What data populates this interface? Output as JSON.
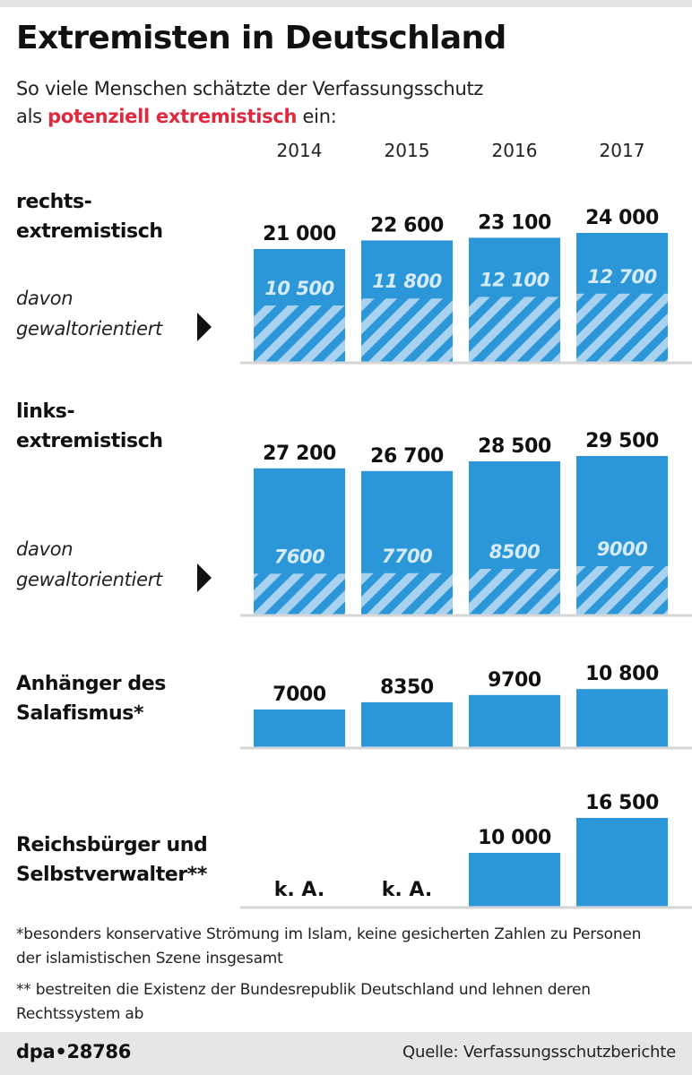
{
  "header": {
    "title": "Extremisten in Deutschland",
    "subtitle_line1": "So viele Menschen schätzte der Verfassungsschutz",
    "subtitle_pre": "als",
    "subtitle_highlight": "potenziell extremistisch",
    "subtitle_post": "ein:"
  },
  "colors": {
    "bar": "#2b97d8",
    "hatch_light": "#a8d2ef",
    "highlight": "#e0283e",
    "divider": "#d6d6d6"
  },
  "chart_data": {
    "type": "bar",
    "categories": [
      "2014",
      "2015",
      "2016",
      "2017"
    ],
    "groups": [
      {
        "label_lines": [
          "rechts-",
          "extremistisch"
        ],
        "values": [
          21000,
          22600,
          23100,
          24000
        ],
        "value_labels": [
          "21 000",
          "22 600",
          "23 100",
          "24 000"
        ],
        "sub_label_lines": [
          "davon",
          "gewaltorientiert"
        ],
        "sub_values": [
          10500,
          11800,
          12100,
          12700
        ],
        "sub_value_labels": [
          "10 500",
          "11 800",
          "12 100",
          "12 700"
        ]
      },
      {
        "label_lines": [
          "links-",
          "extremistisch"
        ],
        "values": [
          27200,
          26700,
          28500,
          29500
        ],
        "value_labels": [
          "27 200",
          "26 700",
          "28 500",
          "29 500"
        ],
        "sub_label_lines": [
          "davon",
          "gewaltorientiert"
        ],
        "sub_values": [
          7600,
          7700,
          8500,
          9000
        ],
        "sub_value_labels": [
          "7600",
          "7700",
          "8500",
          "9000"
        ]
      },
      {
        "label_lines": [
          "Anhänger des",
          "Salafismus*"
        ],
        "values": [
          7000,
          8350,
          9700,
          10800
        ],
        "value_labels": [
          "7000",
          "8350",
          "9700",
          "10 800"
        ]
      },
      {
        "label_lines": [
          "Reichsbürger und",
          "Selbstverwalter**"
        ],
        "values": [
          null,
          null,
          10000,
          16500
        ],
        "value_labels": [
          "k. A.",
          "k. A.",
          "10 000",
          "16 500"
        ]
      }
    ]
  },
  "footnotes": {
    "note1": "*besonders konservative Strömung im Islam, keine gesicherten Zahlen zu Personen der islamistischen Szene insgesamt",
    "note2": "** bestreiten die Existenz der Bundesrepublik Deutschland und lehnen deren Rechtssystem ab"
  },
  "footer": {
    "brand": "dpa•28786",
    "source": "Quelle: Verfassungsschutzberichte"
  }
}
